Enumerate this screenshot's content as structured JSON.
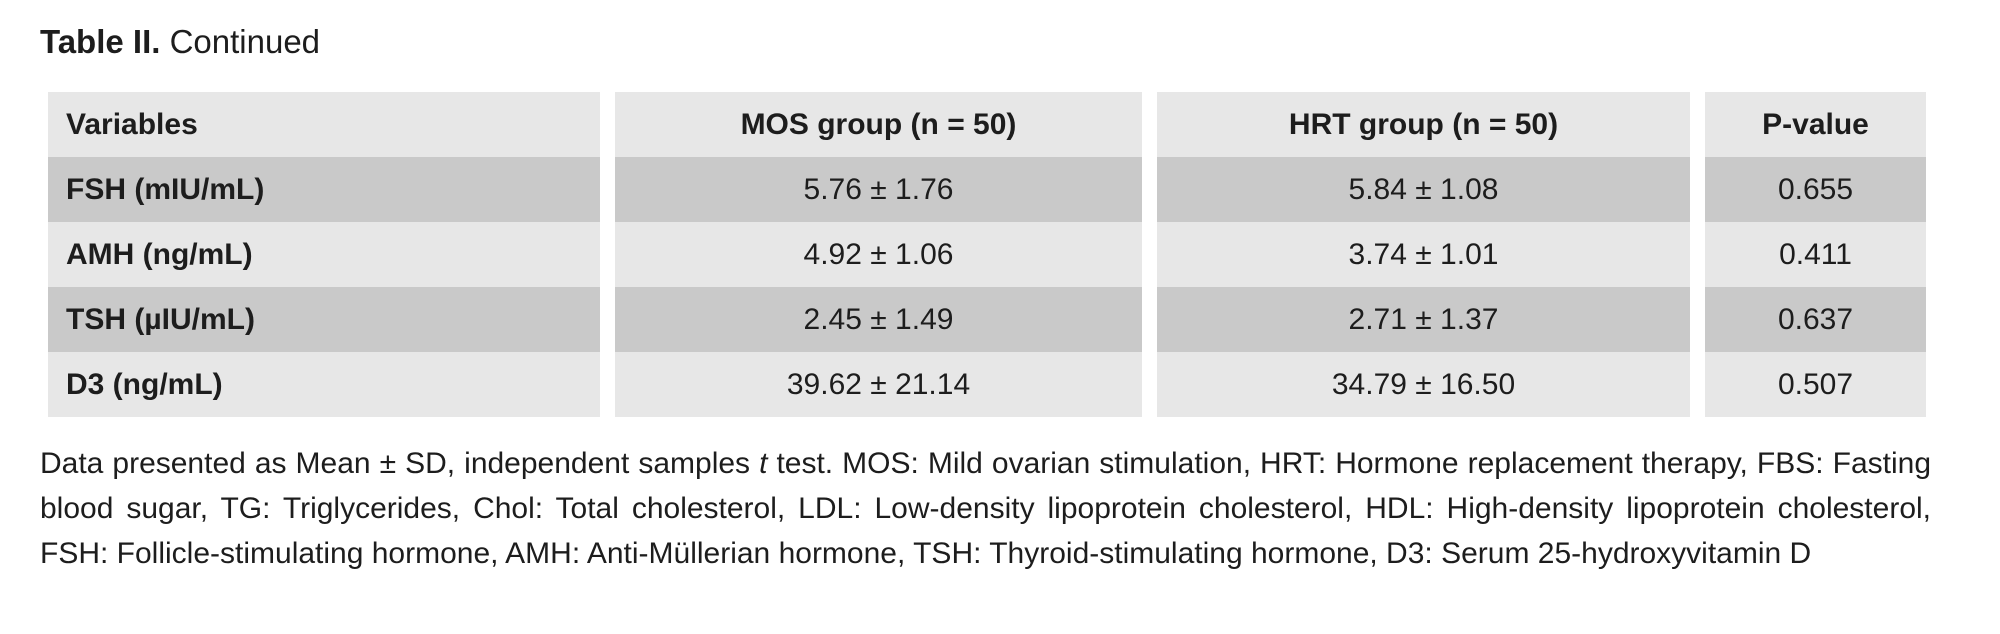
{
  "title": {
    "label": "Table II.",
    "continued": " Continued"
  },
  "table": {
    "columns": [
      "Variables",
      "MOS group (n = 50)",
      "HRT group (n = 50)",
      "P-value"
    ],
    "rows": [
      {
        "variable": "FSH (mIU/mL)",
        "mos": "5.76 ± 1.76",
        "hrt": "5.84 ± 1.08",
        "p": "0.655"
      },
      {
        "variable": "AMH (ng/mL)",
        "mos": "4.92 ± 1.06",
        "hrt": "3.74 ± 1.01",
        "p": "0.411"
      },
      {
        "variable": "TSH (µIU/mL)",
        "mos": "2.45 ± 1.49",
        "hrt": "2.71 ± 1.37",
        "p": "0.637"
      },
      {
        "variable": "D3 (ng/mL)",
        "mos": "39.62 ± 21.14",
        "hrt": "34.79 ± 16.50",
        "p": "0.507"
      }
    ]
  },
  "footnote": {
    "pre_italic": "Data presented as Mean ± SD, independent samples ",
    "italic": "t",
    "post_italic": " test. MOS: Mild ovarian stimulation, HRT: Hormone replacement therapy, FBS: Fasting blood sugar, TG: Triglycerides, Chol: Total cholesterol, LDL: Low-density lipoprotein cholesterol, HDL: High-density lipoprotein cholesterol, FSH: Follicle-stimulating hormone, AMH: Anti-Müllerian hormone, TSH: Thyroid-stimulating hormone, D3: Serum 25-hydroxyvitamin D"
  },
  "colors": {
    "background": "#ffffff",
    "row_light": "#e7e7e7",
    "row_dark": "#c9c9c9",
    "text": "#1d1d1d"
  }
}
